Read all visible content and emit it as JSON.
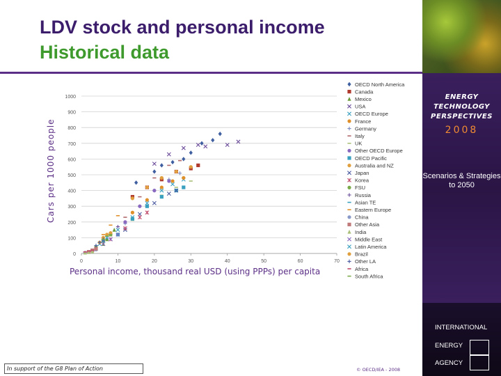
{
  "slide": {
    "title_line1": "LDV stock and personal income",
    "title_line2": "Historical data",
    "footer_left": "In support of the G8 Plan of Action",
    "footer_right": "© OECD/IEA - 2008"
  },
  "sidebar": {
    "etp_title": "ENERGY TECHNOLOGY PERSPECTIVES",
    "etp_year": "2008",
    "scenarios": "Scenarios & Strategies to 2050",
    "iea_lines": [
      "INTERNATIONAL",
      "ENERGY",
      "AGENCY"
    ]
  },
  "colors": {
    "title_purple": "#3b1d6b",
    "title_green": "#3f9a2e",
    "accent_orange": "#f08a32"
  },
  "chart_data": {
    "type": "scatter",
    "xlabel": "Personal income, thousand real USD (using PPPs) per capita",
    "ylabel": "Cars per 1000 people",
    "xlim": [
      0,
      70
    ],
    "ylim": [
      0,
      1000
    ],
    "x_ticks": [
      "0",
      "10",
      "20",
      "30",
      "40",
      "50",
      "60",
      "70"
    ],
    "y_ticks": [
      "0",
      "100",
      "200",
      "300",
      "400",
      "500",
      "600",
      "700",
      "800",
      "900",
      "1000"
    ],
    "grid": true,
    "legend_position": "right",
    "series": [
      {
        "name": "OECD North America",
        "color": "#3f5fa0",
        "marker": "diamond",
        "points": [
          [
            15,
            450
          ],
          [
            20,
            520
          ],
          [
            22,
            560
          ],
          [
            25,
            580
          ],
          [
            28,
            600
          ],
          [
            30,
            640
          ],
          [
            33,
            700
          ],
          [
            36,
            720
          ],
          [
            38,
            760
          ]
        ]
      },
      {
        "name": "Canada",
        "color": "#b03a2e",
        "marker": "square",
        "points": [
          [
            14,
            360
          ],
          [
            18,
            420
          ],
          [
            22,
            470
          ],
          [
            26,
            520
          ],
          [
            30,
            540
          ],
          [
            32,
            560
          ]
        ]
      },
      {
        "name": "Mexico",
        "color": "#6a9a3a",
        "marker": "triangle",
        "points": [
          [
            6,
            60
          ],
          [
            7,
            90
          ],
          [
            8,
            120
          ],
          [
            9,
            150
          ]
        ]
      },
      {
        "name": "USA",
        "color": "#6b4c9a",
        "marker": "x",
        "points": [
          [
            20,
            570
          ],
          [
            24,
            630
          ],
          [
            28,
            670
          ],
          [
            32,
            690
          ],
          [
            34,
            680
          ],
          [
            40,
            690
          ],
          [
            43,
            710
          ]
        ]
      },
      {
        "name": "OECD Europe",
        "color": "#3aa0c0",
        "marker": "x",
        "points": [
          [
            10,
            150
          ],
          [
            14,
            230
          ],
          [
            18,
            320
          ],
          [
            22,
            400
          ],
          [
            25,
            440
          ],
          [
            28,
            470
          ]
        ]
      },
      {
        "name": "France",
        "color": "#e0902a",
        "marker": "circle",
        "points": [
          [
            14,
            260
          ],
          [
            18,
            340
          ],
          [
            22,
            420
          ],
          [
            25,
            460
          ],
          [
            28,
            480
          ]
        ]
      },
      {
        "name": "Germany",
        "color": "#7a8ac0",
        "marker": "plus",
        "points": [
          [
            12,
            190
          ],
          [
            16,
            300
          ],
          [
            20,
            400
          ],
          [
            24,
            470
          ],
          [
            27,
            510
          ]
        ]
      },
      {
        "name": "Italy",
        "color": "#b0686a",
        "marker": "dash",
        "points": [
          [
            12,
            230
          ],
          [
            16,
            360
          ],
          [
            20,
            480
          ],
          [
            24,
            560
          ],
          [
            27,
            590
          ]
        ]
      },
      {
        "name": "UK",
        "color": "#aac07a",
        "marker": "dash",
        "points": [
          [
            14,
            210
          ],
          [
            18,
            300
          ],
          [
            22,
            370
          ],
          [
            26,
            420
          ],
          [
            30,
            460
          ]
        ]
      },
      {
        "name": "Other OECD Europe",
        "color": "#8a6ac0",
        "marker": "circle",
        "points": [
          [
            8,
            120
          ],
          [
            12,
            200
          ],
          [
            16,
            300
          ],
          [
            20,
            400
          ],
          [
            24,
            460
          ]
        ]
      },
      {
        "name": "OECD Pacific",
        "color": "#3aa0c0",
        "marker": "square",
        "points": [
          [
            10,
            120
          ],
          [
            14,
            220
          ],
          [
            18,
            300
          ],
          [
            22,
            360
          ],
          [
            26,
            400
          ],
          [
            28,
            420
          ]
        ]
      },
      {
        "name": "Australia and NZ",
        "color": "#e0a040",
        "marker": "circle",
        "points": [
          [
            14,
            350
          ],
          [
            18,
            420
          ],
          [
            22,
            480
          ],
          [
            26,
            520
          ],
          [
            30,
            550
          ]
        ]
      },
      {
        "name": "Japan",
        "color": "#4a5aa0",
        "marker": "x",
        "points": [
          [
            12,
            150
          ],
          [
            16,
            250
          ],
          [
            20,
            320
          ],
          [
            24,
            380
          ],
          [
            26,
            400
          ]
        ]
      },
      {
        "name": "Korea",
        "color": "#c04a6a",
        "marker": "star",
        "points": [
          [
            8,
            90
          ],
          [
            12,
            160
          ],
          [
            16,
            230
          ],
          [
            18,
            260
          ]
        ]
      },
      {
        "name": "FSU",
        "color": "#7aaa4a",
        "marker": "circle",
        "points": [
          [
            4,
            40
          ],
          [
            6,
            80
          ],
          [
            8,
            120
          ]
        ]
      },
      {
        "name": "Russia",
        "color": "#6a4c9a",
        "marker": "plus",
        "points": [
          [
            6,
            80
          ],
          [
            8,
            130
          ],
          [
            10,
            170
          ]
        ]
      },
      {
        "name": "Asian TE",
        "color": "#3aa0c0",
        "marker": "dash",
        "points": [
          [
            2,
            10
          ],
          [
            3,
            15
          ],
          [
            4,
            20
          ]
        ]
      },
      {
        "name": "Eastern Europe",
        "color": "#e0902a",
        "marker": "dash",
        "points": [
          [
            6,
            120
          ],
          [
            8,
            180
          ],
          [
            10,
            240
          ]
        ]
      },
      {
        "name": "China",
        "color": "#8a9ac8",
        "marker": "circle",
        "points": [
          [
            1,
            5
          ],
          [
            2,
            10
          ],
          [
            3,
            15
          ],
          [
            4,
            25
          ]
        ]
      },
      {
        "name": "Other Asia",
        "color": "#c07a7a",
        "marker": "square",
        "points": [
          [
            2,
            10
          ],
          [
            3,
            20
          ],
          [
            4,
            30
          ]
        ]
      },
      {
        "name": "India",
        "color": "#aac07a",
        "marker": "triangle",
        "points": [
          [
            1,
            5
          ],
          [
            2,
            8
          ],
          [
            3,
            12
          ]
        ]
      },
      {
        "name": "Middle East",
        "color": "#8a6ac0",
        "marker": "x",
        "points": [
          [
            6,
            60
          ],
          [
            8,
            90
          ],
          [
            10,
            120
          ]
        ]
      },
      {
        "name": "Latin America",
        "color": "#3aa0c0",
        "marker": "x",
        "points": [
          [
            5,
            60
          ],
          [
            6,
            80
          ],
          [
            7,
            100
          ]
        ]
      },
      {
        "name": "Brazil",
        "color": "#e0a040",
        "marker": "circle",
        "points": [
          [
            5,
            70
          ],
          [
            6,
            100
          ],
          [
            7,
            120
          ],
          [
            8,
            130
          ]
        ]
      },
      {
        "name": "Other LA",
        "color": "#4a5aa0",
        "marker": "plus",
        "points": [
          [
            4,
            50
          ],
          [
            5,
            70
          ],
          [
            6,
            90
          ]
        ]
      },
      {
        "name": "Africa",
        "color": "#c04a6a",
        "marker": "dash",
        "points": [
          [
            1,
            10
          ],
          [
            2,
            15
          ],
          [
            3,
            20
          ]
        ]
      },
      {
        "name": "South Africa",
        "color": "#7aaa4a",
        "marker": "dash",
        "points": [
          [
            6,
            90
          ],
          [
            7,
            110
          ],
          [
            8,
            120
          ]
        ]
      }
    ]
  }
}
